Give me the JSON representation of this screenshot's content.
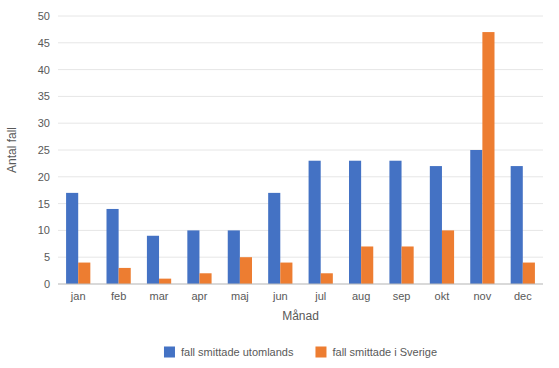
{
  "chart_data": {
    "type": "bar",
    "categories": [
      "jan",
      "feb",
      "mar",
      "apr",
      "maj",
      "jun",
      "jul",
      "aug",
      "sep",
      "okt",
      "nov",
      "dec"
    ],
    "series": [
      {
        "name": "fall smittade utomlands",
        "color": "#4472C4",
        "values": [
          17,
          14,
          9,
          10,
          10,
          17,
          23,
          23,
          23,
          22,
          25,
          22
        ]
      },
      {
        "name": "fall smittade i Sverige",
        "color": "#ED7D31",
        "values": [
          4,
          3,
          1,
          2,
          5,
          4,
          2,
          7,
          7,
          10,
          47,
          4
        ]
      }
    ],
    "xlabel": "Månad",
    "ylabel": "Antal fall",
    "ylim": [
      0,
      50
    ],
    "yticks": [
      0,
      5,
      10,
      15,
      20,
      25,
      30,
      35,
      40,
      45,
      50
    ],
    "grid": true,
    "legend": "bottom"
  }
}
